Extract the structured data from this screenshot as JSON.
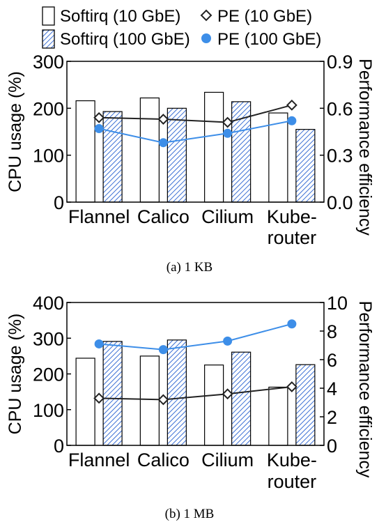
{
  "legend": [
    {
      "label": "Softirq (10 GbE)",
      "marker": "open-bar"
    },
    {
      "label": "PE (10 GbE)",
      "marker": "open-diamond"
    },
    {
      "label": "Softirq (100 GbE)",
      "marker": "hatched-bar"
    },
    {
      "label": "PE (100 GbE)",
      "marker": "filled-circle"
    }
  ],
  "colors": {
    "hatch": "#3b6fd4",
    "pe100": "#3d8ee8",
    "pe10": "#222222",
    "bar_edge": "#000000"
  },
  "chart_data": [
    {
      "type": "bar",
      "caption": "(a)  1  KB",
      "categories": [
        [
          "Flannel"
        ],
        [
          "Calico"
        ],
        [
          "Cilium"
        ],
        [
          "Kube-",
          "router"
        ]
      ],
      "ylabel": "CPU usage (%)",
      "ylabel2": "Performance efficiency",
      "ylim": [
        0,
        300
      ],
      "yticks": [
        0,
        100,
        200,
        300
      ],
      "ylim2": [
        0,
        0.9
      ],
      "yticks2": [
        "0.0",
        "0.3",
        "0.6",
        "0.9"
      ],
      "series": [
        {
          "name": "Softirq (10 GbE)",
          "type": "bar",
          "axis": "left",
          "values": [
            216,
            222,
            234,
            190
          ]
        },
        {
          "name": "Softirq (100 GbE)",
          "type": "bar",
          "axis": "left",
          "values": [
            193,
            200,
            214,
            155
          ]
        },
        {
          "name": "PE (10 GbE)",
          "type": "line",
          "axis": "right",
          "values": [
            0.54,
            0.53,
            0.51,
            0.62
          ]
        },
        {
          "name": "PE (100 GbE)",
          "type": "line",
          "axis": "right",
          "values": [
            0.47,
            0.38,
            0.44,
            0.52
          ]
        }
      ],
      "grid": false
    },
    {
      "type": "bar",
      "caption": "(b)  1  MB",
      "categories": [
        [
          "Flannel"
        ],
        [
          "Calico"
        ],
        [
          "Cilium"
        ],
        [
          "Kube-",
          "router"
        ]
      ],
      "ylabel": "CPU usage (%)",
      "ylabel2": "Performance efficiency",
      "ylim": [
        0,
        400
      ],
      "yticks": [
        0,
        100,
        200,
        300,
        400
      ],
      "ylim2": [
        0,
        10
      ],
      "yticks2": [
        "0",
        "2",
        "4",
        "6",
        "8",
        "10"
      ],
      "series": [
        {
          "name": "Softirq (10 GbE)",
          "type": "bar",
          "axis": "left",
          "values": [
            244,
            250,
            225,
            163
          ]
        },
        {
          "name": "Softirq (100 GbE)",
          "type": "bar",
          "axis": "left",
          "values": [
            291,
            295,
            261,
            226
          ]
        },
        {
          "name": "PE (10 GbE)",
          "type": "line",
          "axis": "right",
          "values": [
            3.3,
            3.2,
            3.6,
            4.1
          ]
        },
        {
          "name": "PE (100 GbE)",
          "type": "line",
          "axis": "right",
          "values": [
            7.1,
            6.7,
            7.3,
            8.5
          ]
        }
      ],
      "grid": false
    }
  ]
}
